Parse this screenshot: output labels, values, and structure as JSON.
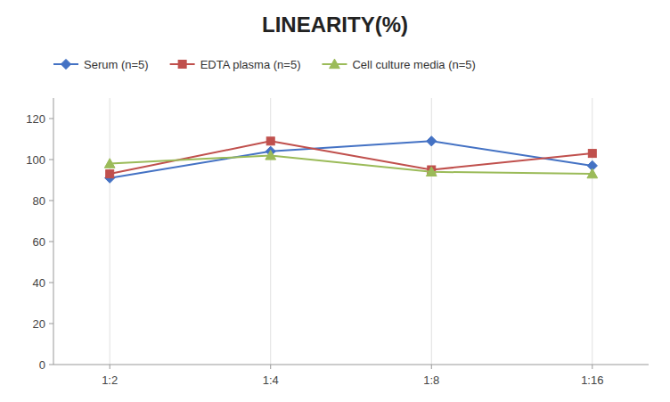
{
  "chart_data": {
    "type": "line",
    "title": "LINEARITY(%)",
    "categories": [
      "1:2",
      "1:4",
      "1:8",
      "1:16"
    ],
    "series": [
      {
        "name": "Serum (n=5)",
        "color": "#4472C4",
        "marker": "diamond",
        "values": [
          91,
          104,
          109,
          97
        ]
      },
      {
        "name": "EDTA plasma (n=5)",
        "color": "#C0504D",
        "marker": "square",
        "values": [
          93,
          109,
          95,
          103
        ]
      },
      {
        "name": "Cell culture media (n=5)",
        "color": "#9BBB59",
        "marker": "triangle",
        "values": [
          98,
          102,
          94,
          93
        ]
      }
    ],
    "ylim": [
      0,
      130
    ],
    "yticks": [
      0,
      20,
      40,
      60,
      80,
      100,
      120
    ],
    "grid": true,
    "legend": "top"
  }
}
